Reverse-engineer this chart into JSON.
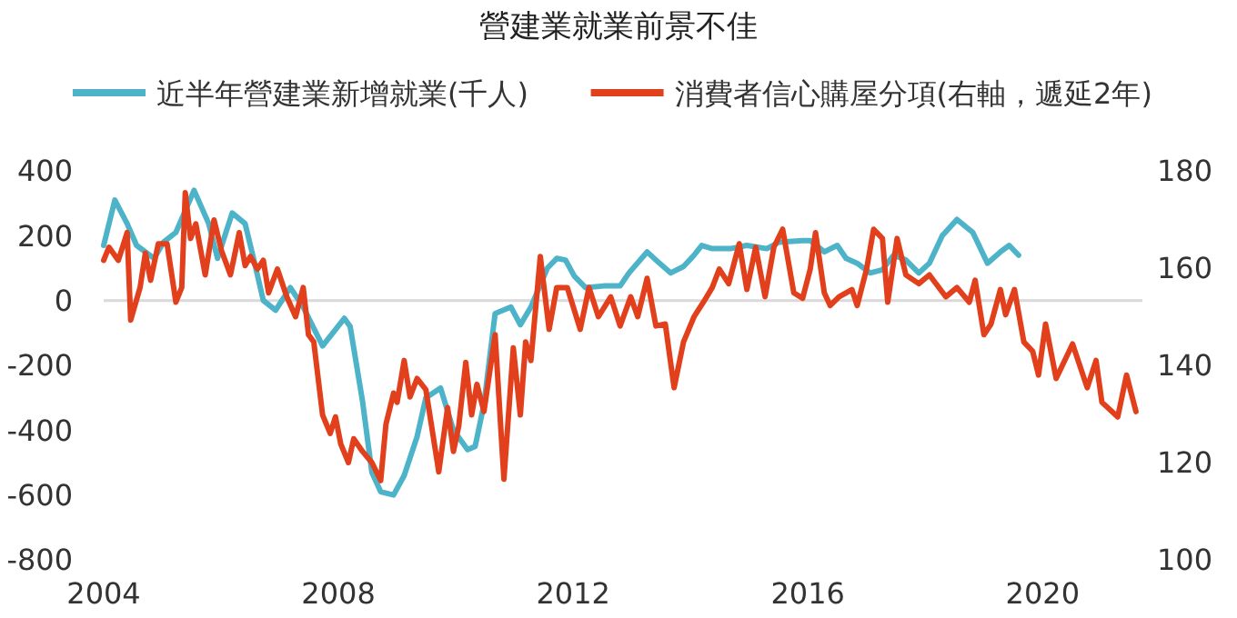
{
  "chart_data": {
    "type": "line",
    "title": "營建業就業前景不佳",
    "legend": "top",
    "grid": false,
    "line_style": "solid",
    "marker": "none",
    "xlim": [
      2004,
      2021.7
    ],
    "xticks": [
      2004,
      2008,
      2012,
      2016,
      2020
    ],
    "ylim": [
      -800,
      400
    ],
    "yticks": [
      -800,
      -600,
      -400,
      -200,
      0,
      200,
      400
    ],
    "y2lim": [
      100,
      180
    ],
    "y2ticks": [
      100,
      120,
      140,
      160,
      180
    ],
    "ref_lines": [
      {
        "axis": "y",
        "value": 0,
        "color": "#d9d9d9"
      }
    ],
    "series": [
      {
        "name": "近半年營建業新增就業(千人)",
        "color": "#4db3c8",
        "x": [
          2004.0,
          2004.19,
          2004.4,
          2004.56,
          2004.86,
          2005.02,
          2005.23,
          2005.54,
          2005.79,
          2005.94,
          2006.19,
          2006.41,
          2006.56,
          2006.72,
          2006.93,
          2007.18,
          2007.4,
          2007.73,
          2008.1,
          2008.2,
          2008.41,
          2008.57,
          2008.72,
          2008.94,
          2009.12,
          2009.34,
          2009.49,
          2009.74,
          2009.96,
          2010.2,
          2010.33,
          2010.48,
          2010.67,
          2010.94,
          2011.1,
          2011.28,
          2011.56,
          2011.72,
          2011.87,
          2012.02,
          2012.21,
          2012.52,
          2012.8,
          2012.95,
          2013.26,
          2013.41,
          2013.66,
          2013.88,
          2014.06,
          2014.19,
          2014.37,
          2014.68,
          2014.96,
          2015.3,
          2015.51,
          2015.91,
          2016.04,
          2016.28,
          2016.5,
          2016.65,
          2016.84,
          2017.06,
          2017.27,
          2017.46,
          2017.67,
          2017.89,
          2018.07,
          2018.29,
          2018.54,
          2018.81,
          2019.06,
          2019.28,
          2019.43,
          2019.59
        ],
        "values": [
          170,
          310,
          237,
          170,
          130,
          180,
          210,
          340,
          237,
          130,
          270,
          237,
          125,
          0,
          -30,
          40,
          -20,
          -140,
          -55,
          -80,
          -310,
          -530,
          -590,
          -600,
          -540,
          -420,
          -300,
          -270,
          -400,
          -460,
          -450,
          -320,
          -40,
          -20,
          -75,
          -20,
          100,
          130,
          125,
          75,
          40,
          45,
          45,
          85,
          150,
          125,
          85,
          105,
          140,
          170,
          160,
          160,
          170,
          160,
          180,
          185,
          185,
          150,
          170,
          130,
          115,
          85,
          95,
          140,
          125,
          85,
          115,
          200,
          250,
          210,
          115,
          150,
          170,
          140
        ]
      },
      {
        "name": "消費者信心購屋分項(右軸，遞延2年)",
        "color": "#e2401c",
        "axis": "y2",
        "x": [
          2004.0,
          2004.09,
          2004.25,
          2004.4,
          2004.46,
          2004.62,
          2004.71,
          2004.8,
          2004.93,
          2005.08,
          2005.23,
          2005.33,
          2005.39,
          2005.48,
          2005.57,
          2005.73,
          2005.88,
          2006.01,
          2006.16,
          2006.31,
          2006.41,
          2006.5,
          2006.62,
          2006.72,
          2006.81,
          2006.96,
          2007.12,
          2007.27,
          2007.4,
          2007.49,
          2007.58,
          2007.73,
          2007.86,
          2007.95,
          2008.04,
          2008.17,
          2008.26,
          2008.41,
          2008.57,
          2008.72,
          2008.81,
          2008.94,
          2009.0,
          2009.12,
          2009.22,
          2009.34,
          2009.49,
          2009.71,
          2009.86,
          2009.96,
          2010.05,
          2010.17,
          2010.27,
          2010.36,
          2010.48,
          2010.67,
          2010.82,
          2010.98,
          2011.1,
          2011.19,
          2011.28,
          2011.44,
          2011.59,
          2011.72,
          2011.9,
          2012.12,
          2012.27,
          2012.43,
          2012.64,
          2012.8,
          2012.98,
          2013.1,
          2013.26,
          2013.41,
          2013.57,
          2013.72,
          2013.88,
          2014.06,
          2014.22,
          2014.37,
          2014.49,
          2014.65,
          2014.83,
          2014.96,
          2015.11,
          2015.27,
          2015.42,
          2015.57,
          2015.76,
          2015.91,
          2016.04,
          2016.13,
          2016.28,
          2016.38,
          2016.53,
          2016.75,
          2016.84,
          2017.0,
          2017.12,
          2017.27,
          2017.36,
          2017.52,
          2017.67,
          2017.89,
          2018.07,
          2018.35,
          2018.54,
          2018.75,
          2018.85,
          2019.0,
          2019.12,
          2019.28,
          2019.37,
          2019.52,
          2019.68,
          2019.83,
          2019.93,
          2020.05,
          2020.23,
          2020.51,
          2020.76,
          2020.91,
          2021.01,
          2021.28,
          2021.43,
          2021.59
        ],
        "values": [
          161.6,
          164.3,
          161.6,
          167.3,
          149.3,
          156,
          163.1,
          157.5,
          165,
          165,
          153,
          156,
          175.5,
          166.1,
          169.1,
          158.6,
          169.9,
          163.5,
          158.6,
          167.3,
          160.5,
          162.4,
          159.8,
          161.6,
          154.9,
          159.8,
          154.1,
          150,
          156,
          146.3,
          144.8,
          129.8,
          126,
          129.4,
          123.8,
          120,
          124.9,
          122.3,
          120,
          116.3,
          127.9,
          134.3,
          132.4,
          141,
          133.5,
          137.3,
          135,
          118.1,
          131.3,
          122.3,
          127.5,
          140.6,
          129.8,
          136.1,
          130.5,
          146.3,
          116.6,
          143.6,
          129.8,
          144.8,
          141,
          162.4,
          147.4,
          156,
          156,
          147.4,
          156,
          150,
          154.1,
          148.1,
          154.1,
          150,
          157.9,
          148.1,
          148.5,
          135.4,
          144.8,
          150,
          153,
          156,
          159.8,
          156.8,
          165,
          155.6,
          164.3,
          154.1,
          164.3,
          168,
          154.9,
          153.8,
          159.8,
          167.3,
          154.9,
          152.3,
          154.1,
          155.6,
          152.3,
          159.8,
          168,
          166.1,
          153,
          166.1,
          158.6,
          156.8,
          158.6,
          154.1,
          156,
          153,
          157.5,
          146.3,
          148.5,
          155.6,
          150.4,
          155.6,
          144.8,
          142.9,
          138,
          148.5,
          137.3,
          144.4,
          135.4,
          141,
          132.4,
          129.4,
          138,
          130.5
        ]
      }
    ]
  }
}
